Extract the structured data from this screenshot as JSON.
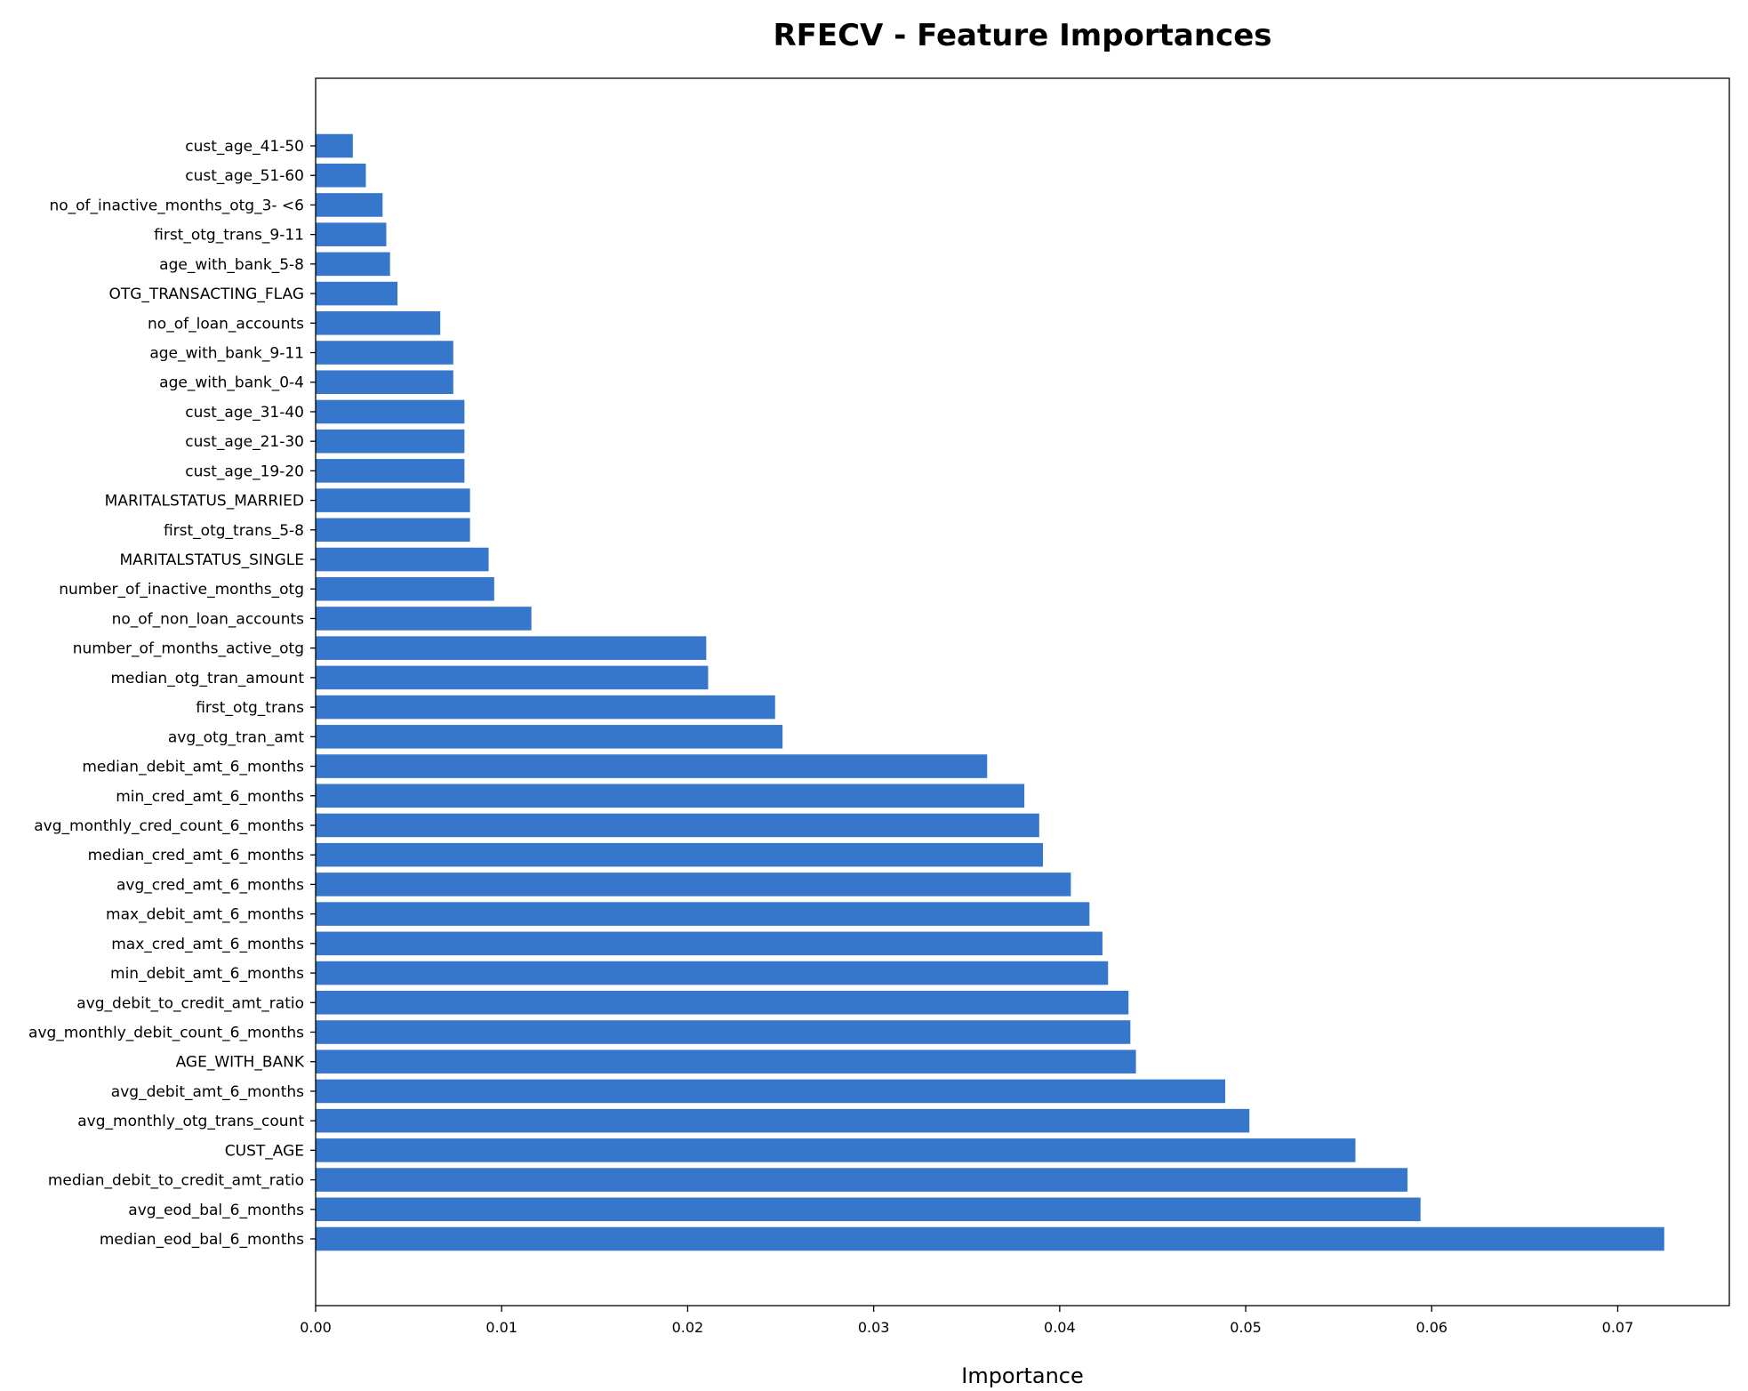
{
  "chart_data": {
    "type": "bar",
    "orientation": "horizontal",
    "title": "RFECV - Feature Importances",
    "xlabel": "Importance",
    "ylabel": "",
    "xlim": [
      0,
      0.076
    ],
    "x_ticks": [
      "0.00",
      "0.01",
      "0.02",
      "0.03",
      "0.04",
      "0.05",
      "0.06",
      "0.07"
    ],
    "bar_color": "#3677cc",
    "grid": false,
    "legend": "none",
    "categories": [
      "cust_age_41-50",
      "cust_age_51-60",
      "no_of_inactive_months_otg_3- <6",
      "first_otg_trans_9-11",
      "age_with_bank_5-8",
      "OTG_TRANSACTING_FLAG",
      "no_of_loan_accounts",
      "age_with_bank_9-11",
      "age_with_bank_0-4",
      "cust_age_31-40",
      "cust_age_21-30",
      "cust_age_19-20",
      "MARITALSTATUS_MARRIED",
      "first_otg_trans_5-8",
      "MARITALSTATUS_SINGLE",
      "number_of_inactive_months_otg",
      "no_of_non_loan_accounts",
      "number_of_months_active_otg",
      "median_otg_tran_amount",
      "first_otg_trans",
      "avg_otg_tran_amt",
      "median_debit_amt_6_months",
      "min_cred_amt_6_months",
      "avg_monthly_cred_count_6_months",
      "median_cred_amt_6_months",
      "avg_cred_amt_6_months",
      "max_debit_amt_6_months",
      "max_cred_amt_6_months",
      "min_debit_amt_6_months",
      "avg_debit_to_credit_amt_ratio",
      "avg_monthly_debit_count_6_months",
      "AGE_WITH_BANK",
      "avg_debit_amt_6_months",
      "avg_monthly_otg_trans_count",
      "CUST_AGE",
      "median_debit_to_credit_amt_ratio",
      "avg_eod_bal_6_months",
      "median_eod_bal_6_months"
    ],
    "values": [
      0.002,
      0.0027,
      0.0036,
      0.0038,
      0.004,
      0.0044,
      0.0067,
      0.0074,
      0.0074,
      0.008,
      0.008,
      0.008,
      0.0083,
      0.0083,
      0.0093,
      0.0096,
      0.0116,
      0.021,
      0.0211,
      0.0247,
      0.0251,
      0.0361,
      0.0381,
      0.0389,
      0.0391,
      0.0406,
      0.0416,
      0.0423,
      0.0426,
      0.0437,
      0.0438,
      0.0441,
      0.0489,
      0.0502,
      0.0559,
      0.0587,
      0.0594,
      0.0725
    ]
  }
}
